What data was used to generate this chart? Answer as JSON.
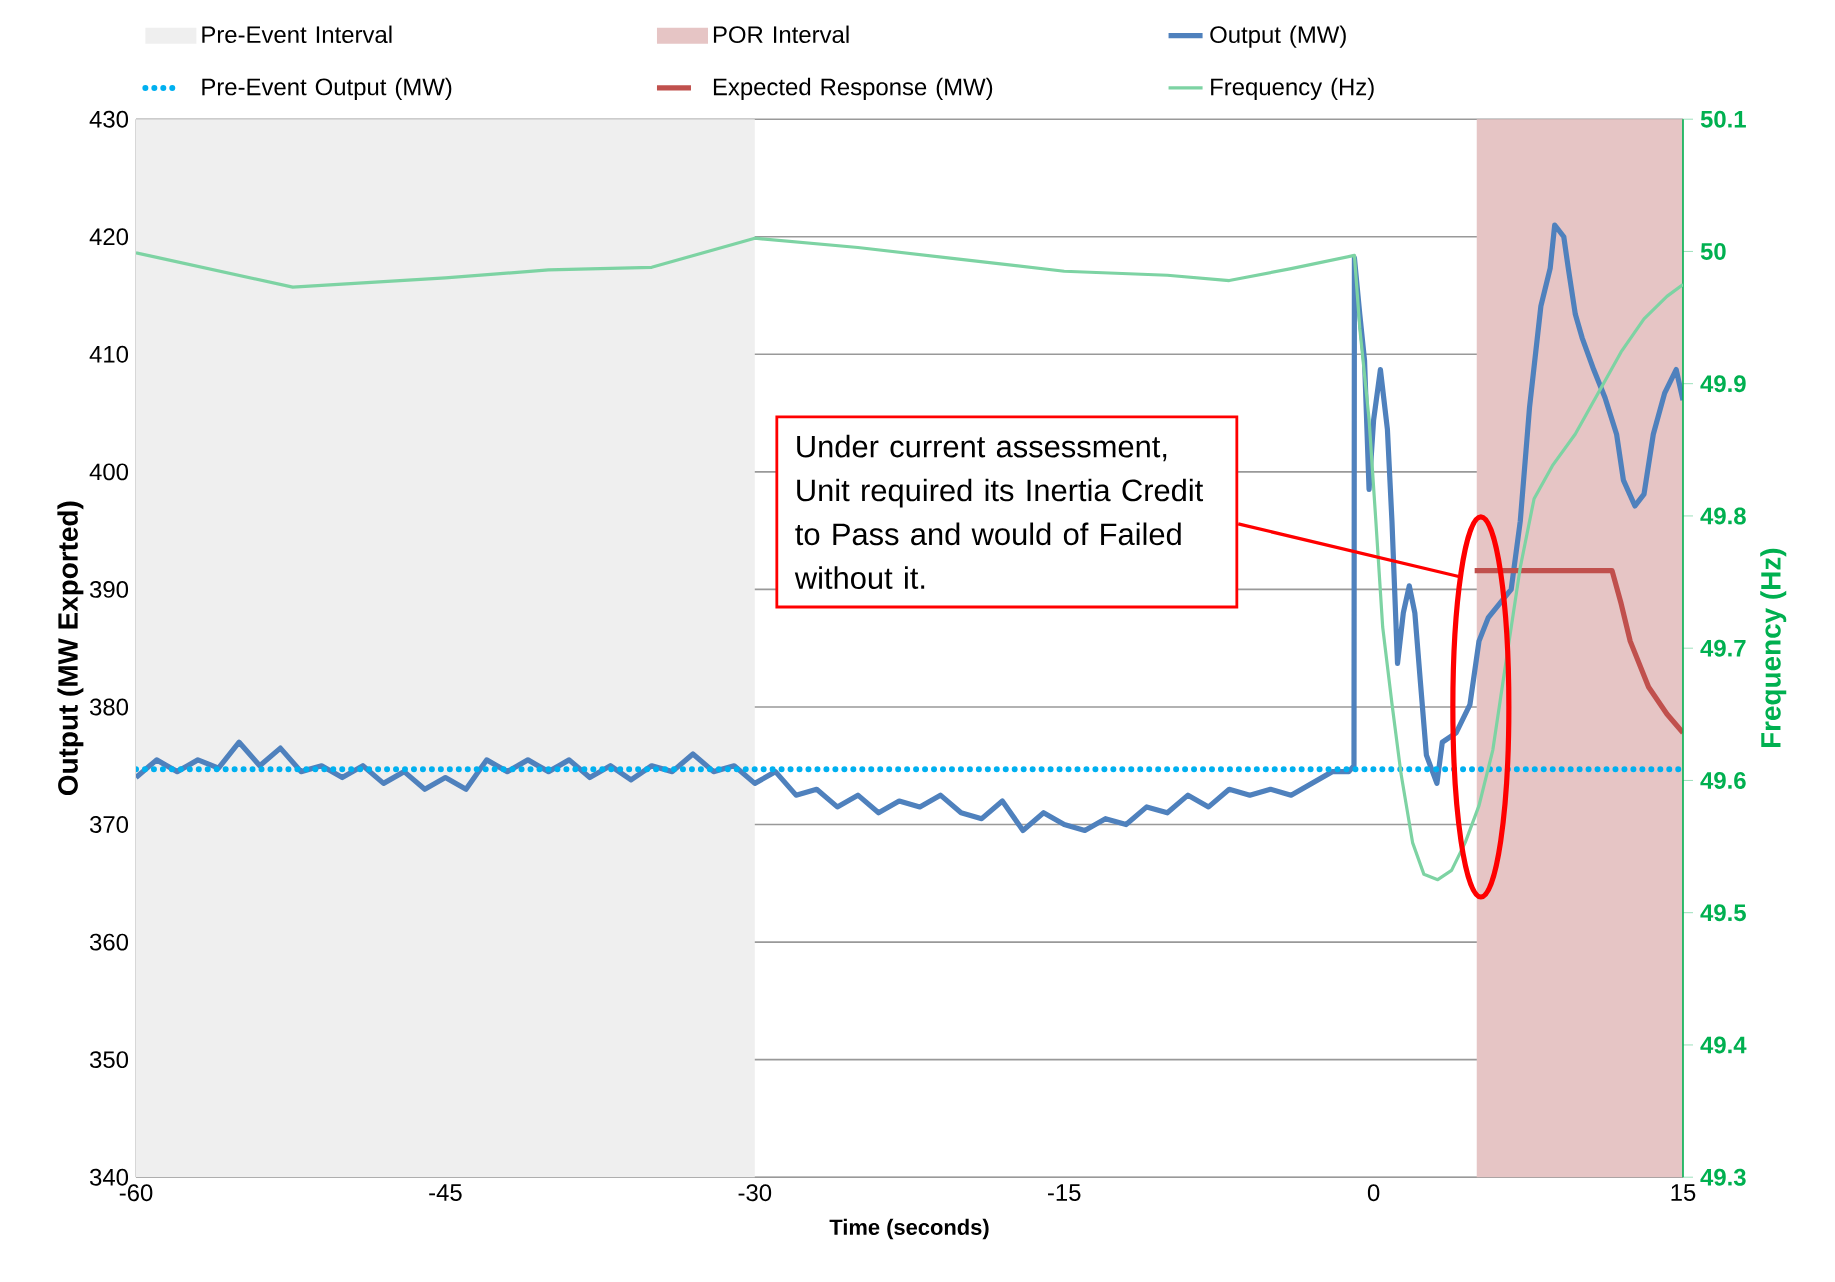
{
  "chart_data": {
    "type": "line",
    "xlabel": "Time (seconds)",
    "ylabel": "Output (MW Exported)",
    "y2label": "Frequency (Hz)",
    "xlim": [
      -60,
      15
    ],
    "xticks": [
      -60,
      -45,
      -30,
      -15,
      0,
      15
    ],
    "ylim": [
      340,
      430
    ],
    "yticks": [
      340,
      350,
      360,
      370,
      380,
      390,
      400,
      410,
      420,
      430
    ],
    "y2lim": [
      49.3,
      50.1
    ],
    "y2ticks": [
      49.3,
      49.4,
      49.5,
      49.6,
      49.7,
      49.8,
      49.9,
      50,
      50.1
    ],
    "grid": "y",
    "legend": "top",
    "bands": [
      {
        "axis": "x",
        "from": -60,
        "to": -30,
        "label": "Pre-Event Interval",
        "color": "#efefef"
      },
      {
        "axis": "x",
        "from": 5,
        "to": 15,
        "label": "POR Interval",
        "color": "#e6c5c5"
      }
    ],
    "annotations": [
      "Under current assessment, Unit required its Inertia Credit to Pass and would of Failed without it."
    ],
    "series": [
      {
        "name": "Output (MW)",
        "color": "#4f81bd",
        "x": [
          -60,
          -59,
          -58,
          -57,
          -56,
          -55,
          -54,
          -53,
          -52,
          -51,
          -50,
          -49,
          -48,
          -47,
          -46,
          -45,
          -44,
          -43,
          -42,
          -41,
          -40,
          -39,
          -38,
          -37,
          -36,
          -35,
          -34,
          -33,
          -32,
          -31,
          -30,
          -29,
          -28,
          -27,
          -26,
          -25,
          -24,
          -23,
          -22,
          -21,
          -20,
          -19,
          -18,
          -17,
          -16,
          -15,
          -14,
          -13,
          -12,
          -11,
          -10,
          -9,
          -8,
          -7,
          -6,
          -5,
          -4,
          -3,
          -2,
          -1.2,
          -0.95,
          -0.93,
          -0.67,
          -0.44,
          -0.22,
          0,
          0.33,
          0.67,
          0.89,
          1.16,
          1.44,
          1.73,
          2,
          2.27,
          2.56,
          3.07,
          3.33,
          4,
          4.67,
          5.11,
          5.56,
          6.11,
          6.67,
          7.11,
          7.56,
          8.11,
          8.56,
          8.78,
          9.22,
          9.44,
          9.78,
          10.11,
          10.67,
          11.22,
          11.78,
          12.11,
          12.67,
          13.11,
          13.56,
          14.11,
          14.67,
          15
        ],
        "values": [
          374,
          375.5,
          374.5,
          375.5,
          374.8,
          377,
          375,
          376.5,
          374.5,
          375,
          374,
          375,
          373.5,
          374.5,
          373,
          374,
          373,
          375.5,
          374.5,
          375.5,
          374.5,
          375.5,
          374,
          375,
          373.8,
          375,
          374.5,
          376,
          374.5,
          375,
          373.5,
          374.5,
          372.5,
          373,
          371.5,
          372.5,
          371,
          372,
          371.5,
          372.5,
          371,
          370.5,
          372,
          369.5,
          371,
          370,
          369.5,
          370.5,
          370,
          371.5,
          371,
          372.5,
          371.5,
          373,
          372.5,
          373,
          372.5,
          373.5,
          374.5,
          374.5,
          375,
          418.2,
          413.4,
          409.5,
          398.5,
          404.4,
          408.7,
          403.6,
          395.8,
          383.7,
          388,
          390.3,
          388,
          382.1,
          375.9,
          373.5,
          377,
          377.8,
          380.2,
          385.6,
          387.6,
          388.8,
          390,
          395.8,
          405.5,
          414.1,
          417.3,
          421,
          420,
          417.3,
          413.4,
          411.4,
          408.7,
          406.3,
          403.2,
          399.3,
          397.1,
          398.1,
          403.2,
          406.7,
          408.7,
          406.1
        ]
      },
      {
        "name": "Pre-Event Output (MW)",
        "color": "#00b0f0",
        "line_style": "dotted",
        "x": [
          -60,
          15
        ],
        "values": [
          374.7,
          374.7
        ]
      },
      {
        "name": "Expected Response (MW)",
        "color": "#c0504d",
        "x": [
          4.9,
          11.56,
          12,
          12.44,
          13.33,
          14.22,
          15
        ],
        "values": [
          391.6,
          391.6,
          388.8,
          385.6,
          381.7,
          379.4,
          377.8
        ]
      },
      {
        "name": "Frequency (Hz)",
        "color": "#7dd3a3",
        "axis": "y2",
        "x": [
          -60,
          -52.4,
          -45,
          -40,
          -35,
          -30,
          -25,
          -20,
          -15,
          -10,
          -7,
          -4,
          -0.93,
          -0.67,
          -0.22,
          0.11,
          0.44,
          0.89,
          1.33,
          1.89,
          2.44,
          3.11,
          3.78,
          4.44,
          5.11,
          5.78,
          6.44,
          7.11,
          7.78,
          8.67,
          9.78,
          10.89,
          12,
          13.11,
          14.22,
          15
        ],
        "values": [
          49.999,
          49.973,
          49.98,
          49.986,
          49.988,
          50.01,
          50.003,
          49.994,
          49.985,
          49.982,
          49.978,
          49.987,
          49.997,
          49.942,
          49.873,
          49.796,
          49.716,
          49.658,
          49.605,
          49.553,
          49.529,
          49.525,
          49.532,
          49.553,
          49.581,
          49.623,
          49.692,
          49.761,
          49.813,
          49.838,
          49.862,
          49.893,
          49.924,
          49.949,
          49.966,
          49.975
        ]
      }
    ]
  }
}
